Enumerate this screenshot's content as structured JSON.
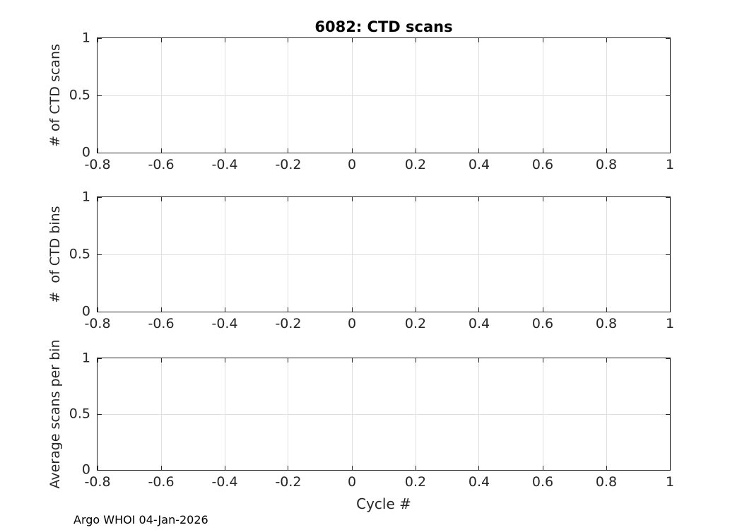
{
  "figure": {
    "title": "6082: CTD scans",
    "xlabel": "Cycle #",
    "footer": "Argo WHOI 04-Jan-2026"
  },
  "colors": {
    "axis": "#262626",
    "tick_label": "#262626",
    "grid": "#e0e0e0",
    "title": "#000000",
    "background": "#ffffff"
  },
  "chart_data": [
    {
      "type": "line",
      "title": "6082: CTD scans",
      "ylabel": "# of CTD scans",
      "xlabel": "",
      "xlim": [
        -0.8,
        1
      ],
      "ylim": [
        0,
        1
      ],
      "x_ticks": [
        -0.8,
        -0.6,
        -0.4,
        -0.2,
        0,
        0.2,
        0.4,
        0.6,
        0.8,
        1
      ],
      "x_tick_labels": [
        "-0.8",
        "-0.6",
        "-0.4",
        "-0.2",
        "0",
        "0.2",
        "0.4",
        "0.6",
        "0.8",
        "1"
      ],
      "y_ticks": [
        0,
        0.5,
        1
      ],
      "y_tick_labels": [
        "0",
        "0.5",
        "1"
      ],
      "grid": true,
      "legend": null,
      "series": []
    },
    {
      "type": "line",
      "title": "",
      "ylabel": "#  of CTD bins",
      "xlabel": "",
      "xlim": [
        -0.8,
        1
      ],
      "ylim": [
        0,
        1
      ],
      "x_ticks": [
        -0.8,
        -0.6,
        -0.4,
        -0.2,
        0,
        0.2,
        0.4,
        0.6,
        0.8,
        1
      ],
      "x_tick_labels": [
        "-0.8",
        "-0.6",
        "-0.4",
        "-0.2",
        "0",
        "0.2",
        "0.4",
        "0.6",
        "0.8",
        "1"
      ],
      "y_ticks": [
        0,
        0.5,
        1
      ],
      "y_tick_labels": [
        "0",
        "0.5",
        "1"
      ],
      "grid": true,
      "legend": null,
      "series": []
    },
    {
      "type": "line",
      "title": "",
      "ylabel": "Average scans per bin",
      "xlabel": "Cycle #",
      "xlim": [
        -0.8,
        1
      ],
      "ylim": [
        0,
        1
      ],
      "x_ticks": [
        -0.8,
        -0.6,
        -0.4,
        -0.2,
        0,
        0.2,
        0.4,
        0.6,
        0.8,
        1
      ],
      "x_tick_labels": [
        "-0.8",
        "-0.6",
        "-0.4",
        "-0.2",
        "0",
        "0.2",
        "0.4",
        "0.6",
        "0.8",
        "1"
      ],
      "y_ticks": [
        0,
        0.5,
        1
      ],
      "y_tick_labels": [
        "0",
        "0.5",
        "1"
      ],
      "grid": true,
      "legend": null,
      "series": []
    }
  ]
}
